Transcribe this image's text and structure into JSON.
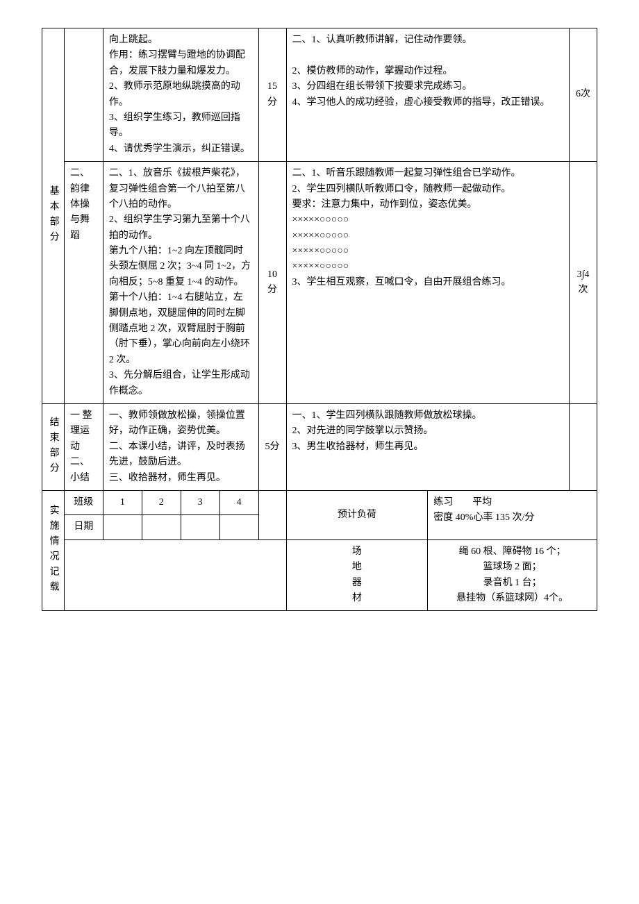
{
  "row1": {
    "section": "基本部分",
    "sub": "",
    "teacher": "向上跳起。\n作用：练习摆臂与蹬地的协调配合，发展下肢力量和爆发力。\n2、教师示范原地纵跳摸高的动作。\n3、组织学生练习，教师巡回指导。\n4、请优秀学生演示，纠正错误。",
    "time": "15分",
    "student": "二、1、认真听教师讲解，记住动作要领。\n\n2、模仿教师的动作，掌握动作过程。\n3、分四组在组长带领下按要求完成练习。\n4、学习他人的成功经验，虚心接受教师的指导，改正错误。",
    "reps": "6次"
  },
  "row2": {
    "sub": "二、韵律体操与舞蹈",
    "teacher": "二、1、放音乐《拔根芦柴花》，复习弹性组合第一个八拍至第八个八拍的动作。\n2、组织学生学习第九至第十个八拍的动作。\n第九个八拍：1~2 向左顶髋同时头颈左侧屈 2 次；3~4 同 1~2，方向相反；5~8 重复 1~4 的动作。\n第十个八拍：1~4 右腿站立，左脚侧点地，双腿屈伸的同时左脚侧踏点地 2 次，双臂屈肘于胸前（肘下垂），掌心向前向左小绕环 2 次。\n3、先分解后组合，让学生形成动作概念。",
    "time": "10分",
    "student_pre": "二、1、听音乐跟随教师一起复习弹性组合已学动作。\n2、学生四列横队听教师口令，随教师一起做动作。\n要求：注意力集中，动作到位，姿态优美。",
    "formation": "×××××○○○○○\n×××××○○○○○\n×××××○○○○○\n×××××○○○○○",
    "student_post": "3、学生相互观察，互喊口令，自由开展组合练习。",
    "reps": "3∫4次"
  },
  "row3": {
    "section": "结束部分",
    "sub": "一 整理运动\n二、小结",
    "teacher": "一、教师领做放松操，领操位置好，动作正确，姿势优美。\n二、本课小结，讲评，及时表扬先进，鼓励后进。\n三、收拾器材，师生再见。",
    "time": "5分",
    "student": "一、1、学生四列横队跟随教师做放松球操。\n2、对先进的同学鼓掌以示赞扬。\n3、男生收拾器材，师生再见。",
    "reps": ""
  },
  "impl": {
    "section": "实施情况记载",
    "class_label": "班级",
    "date_label": "日期",
    "c1": "1",
    "c2": "2",
    "c3": "3",
    "c4": "4",
    "load_label": "预计负荷",
    "load_text": "练习　　平均\n密度 40%心率 135 次/分",
    "equip_label": "场地器材",
    "equip_text": "绳 60 根、障碍物 16 个；\n篮球场 2 面；\n录音机 1 台；\n悬挂物（系篮球网）4个。"
  }
}
